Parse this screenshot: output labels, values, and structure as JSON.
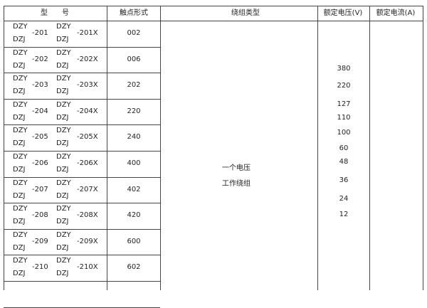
{
  "headers": {
    "model": "型　　号",
    "contact": "触点形式",
    "winding": "绕组类型",
    "voltage": "额定电压(V)",
    "current": "额定电流(A)"
  },
  "rows": [
    {
      "p1a": "DZY",
      "p1b": "DZJ",
      "n1": "-201",
      "p2a": "DZY",
      "p2b": "DZJ",
      "n2": "-201X",
      "contact": "002"
    },
    {
      "p1a": "DZY",
      "p1b": "DZJ",
      "n1": "-202",
      "p2a": "DZY",
      "p2b": "DZJ",
      "n2": "-202X",
      "contact": "006"
    },
    {
      "p1a": "DZY",
      "p1b": "DZJ",
      "n1": "-203",
      "p2a": "DZY",
      "p2b": "DZJ",
      "n2": "-203X",
      "contact": "202"
    },
    {
      "p1a": "DZY",
      "p1b": "DZJ",
      "n1": "-204",
      "p2a": "DZY",
      "p2b": "DZJ",
      "n2": "-204X",
      "contact": "220"
    },
    {
      "p1a": "DZY",
      "p1b": "DZJ",
      "n1": "-205",
      "p2a": "DZY",
      "p2b": "DZJ",
      "n2": "-205X",
      "contact": "240"
    },
    {
      "p1a": "DZY",
      "p1b": "DZJ",
      "n1": "-206",
      "p2a": "DZY",
      "p2b": "DZJ",
      "n2": "-206X",
      "contact": "400"
    },
    {
      "p1a": "DZY",
      "p1b": "DZJ",
      "n1": "-207",
      "p2a": "DZY",
      "p2b": "DZJ",
      "n2": "-207X",
      "contact": "402"
    },
    {
      "p1a": "DZY",
      "p1b": "DZJ",
      "n1": "-208",
      "p2a": "DZY",
      "p2b": "DZJ",
      "n2": "-208X",
      "contact": "420"
    },
    {
      "p1a": "DZY",
      "p1b": "DZJ",
      "n1": "-209",
      "p2a": "DZY",
      "p2b": "DZJ",
      "n2": "-209X",
      "contact": "600"
    },
    {
      "p1a": "DZY",
      "p1b": "DZJ",
      "n1": "-210",
      "p2a": "DZY",
      "p2b": "DZJ",
      "n2": "-210X",
      "contact": "602"
    }
  ],
  "winding": {
    "line1": "一个电压",
    "line2": "工作绕组"
  },
  "voltages": [
    "380",
    "220",
    "127",
    "110",
    "100",
    "60",
    "48",
    "36",
    "24",
    "12"
  ]
}
